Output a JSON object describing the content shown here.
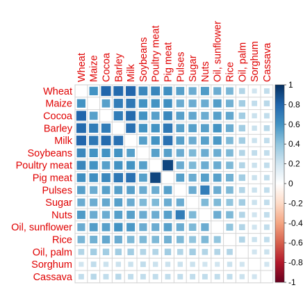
{
  "chart_data": {
    "type": "heatmap",
    "title": "",
    "variables": [
      "Wheat",
      "Maize",
      "Cocoa",
      "Barley",
      "Milk",
      "Soybeans",
      "Poultry meat",
      "Pig meat",
      "Pulses",
      "Sugar",
      "Nuts",
      "Oil, sunflower",
      "Rice",
      "Oil, palm",
      "Sorghum",
      "Cassava"
    ],
    "matrix": [
      [
        1.0,
        0.6,
        0.8,
        0.78,
        0.8,
        0.65,
        0.66,
        0.62,
        0.55,
        0.5,
        0.57,
        0.5,
        0.46,
        0.3,
        0.2,
        0.25
      ],
      [
        0.6,
        1.0,
        0.55,
        0.7,
        0.72,
        0.6,
        0.6,
        0.62,
        0.5,
        0.5,
        0.5,
        0.56,
        0.48,
        0.35,
        0.25,
        0.28
      ],
      [
        0.8,
        0.55,
        1.0,
        0.7,
        0.78,
        0.6,
        0.55,
        0.65,
        0.55,
        0.52,
        0.5,
        0.55,
        0.52,
        0.35,
        0.22,
        0.25
      ],
      [
        0.78,
        0.7,
        0.7,
        1.0,
        0.75,
        0.6,
        0.6,
        0.72,
        0.55,
        0.55,
        0.55,
        0.6,
        0.5,
        0.35,
        0.22,
        0.28
      ],
      [
        0.8,
        0.72,
        0.78,
        0.75,
        1.0,
        0.55,
        0.6,
        0.75,
        0.55,
        0.5,
        0.55,
        0.58,
        0.45,
        0.35,
        0.22,
        0.25
      ],
      [
        0.65,
        0.6,
        0.6,
        0.6,
        0.55,
        1.0,
        0.55,
        0.55,
        0.5,
        0.45,
        0.5,
        0.5,
        0.45,
        0.3,
        0.25,
        0.25
      ],
      [
        0.66,
        0.6,
        0.55,
        0.6,
        0.6,
        0.55,
        1.0,
        0.92,
        0.5,
        0.45,
        0.5,
        0.5,
        0.45,
        0.3,
        0.22,
        0.25
      ],
      [
        0.62,
        0.62,
        0.65,
        0.72,
        0.75,
        0.55,
        0.92,
        1.0,
        0.55,
        0.5,
        0.55,
        0.55,
        0.48,
        0.35,
        0.22,
        0.25
      ],
      [
        0.55,
        0.5,
        0.55,
        0.55,
        0.55,
        0.5,
        0.5,
        0.55,
        1.0,
        0.5,
        0.7,
        0.5,
        0.45,
        0.3,
        0.22,
        0.25
      ],
      [
        0.5,
        0.5,
        0.52,
        0.55,
        0.5,
        0.45,
        0.45,
        0.5,
        0.5,
        1.0,
        0.45,
        0.45,
        0.4,
        0.35,
        0.22,
        0.25
      ],
      [
        0.57,
        0.5,
        0.5,
        0.55,
        0.55,
        0.5,
        0.5,
        0.55,
        0.7,
        0.45,
        1.0,
        0.5,
        0.45,
        0.3,
        0.2,
        0.25
      ],
      [
        0.5,
        0.56,
        0.55,
        0.6,
        0.58,
        0.5,
        0.5,
        0.55,
        0.5,
        0.45,
        0.5,
        1.0,
        0.4,
        0.3,
        0.2,
        0.25
      ],
      [
        0.46,
        0.48,
        0.52,
        0.5,
        0.45,
        0.45,
        0.45,
        0.48,
        0.45,
        0.4,
        0.45,
        0.4,
        1.0,
        0.3,
        0.22,
        0.25
      ],
      [
        0.3,
        0.35,
        0.35,
        0.35,
        0.35,
        0.3,
        0.3,
        0.35,
        0.3,
        0.35,
        0.3,
        0.3,
        0.3,
        1.0,
        0.2,
        0.22
      ],
      [
        0.2,
        0.25,
        0.22,
        0.22,
        0.22,
        0.25,
        0.22,
        0.22,
        0.22,
        0.22,
        0.2,
        0.2,
        0.22,
        0.2,
        1.0,
        0.2
      ],
      [
        0.25,
        0.28,
        0.25,
        0.28,
        0.25,
        0.25,
        0.25,
        0.25,
        0.25,
        0.25,
        0.25,
        0.25,
        0.25,
        0.22,
        0.2,
        1.0
      ]
    ],
    "diagonal_shown": false,
    "glyph": "square sized by |r|",
    "color_scale": {
      "range": [
        -1,
        1
      ],
      "ticks": [
        "1",
        "0.8",
        "0.6",
        "0.4",
        "0.2",
        "0",
        "-0.2",
        "-0.4",
        "-0.6",
        "-0.8",
        "-1"
      ],
      "ticks_num": [
        1,
        0.8,
        0.6,
        0.4,
        0.2,
        0,
        -0.2,
        -0.4,
        -0.6,
        -0.8,
        -1
      ],
      "colors": [
        "#67001F",
        "#B2182B",
        "#D6604D",
        "#F4A582",
        "#FDDBC7",
        "#FFFFFF",
        "#D1E5F0",
        "#92C5DE",
        "#4393C3",
        "#2166AC",
        "#053061"
      ]
    },
    "label_color": "#E00000",
    "grid": true,
    "legend": "right"
  }
}
